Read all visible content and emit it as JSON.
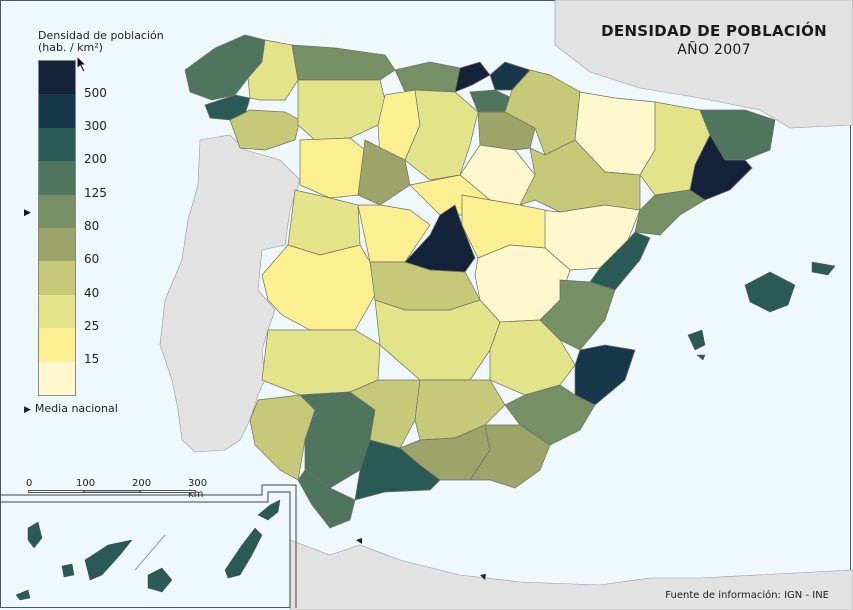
{
  "map": {
    "title": "DENSIDAD DE POBLACIÓN",
    "subtitle": "AÑO 2007",
    "source": "Fuente de información: IGN - INE"
  },
  "legend": {
    "title_line1": "Densidad de población",
    "title_line2": "(hab. / km²)",
    "breaks": [
      "500",
      "300",
      "200",
      "125",
      "80",
      "60",
      "40",
      "25",
      "15"
    ],
    "colors": [
      "#15233a",
      "#17384a",
      "#2a5a55",
      "#4f755e",
      "#768f64",
      "#9da469",
      "#c6c977",
      "#e3e38a",
      "#fbef92",
      "#fff8cc"
    ],
    "national_average_label": "Media nacional",
    "national_average_bracket": "80-125"
  },
  "scale": {
    "ticks": [
      "0",
      "100",
      "200",
      "300 km"
    ]
  },
  "colors": {
    "sea": "#eef8fd",
    "foreign_land": "#e2e2e2",
    "border": "#666666"
  }
}
